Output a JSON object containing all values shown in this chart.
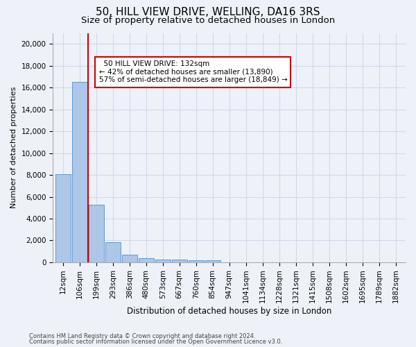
{
  "title1": "50, HILL VIEW DRIVE, WELLING, DA16 3RS",
  "title2": "Size of property relative to detached houses in London",
  "xlabel": "Distribution of detached houses by size in London",
  "ylabel": "Number of detached properties",
  "categories": [
    "12sqm",
    "106sqm",
    "199sqm",
    "293sqm",
    "386sqm",
    "480sqm",
    "573sqm",
    "667sqm",
    "760sqm",
    "854sqm",
    "947sqm",
    "1041sqm",
    "1134sqm",
    "1228sqm",
    "1321sqm",
    "1415sqm",
    "1508sqm",
    "1602sqm",
    "1695sqm",
    "1789sqm",
    "1882sqm"
  ],
  "values": [
    8100,
    16500,
    5300,
    1850,
    700,
    350,
    270,
    230,
    200,
    170,
    0,
    0,
    0,
    0,
    0,
    0,
    0,
    0,
    0,
    0,
    0
  ],
  "bar_color": "#aec6e8",
  "bar_edge_color": "#5b9bd5",
  "grid_color": "#d0d8e8",
  "bg_color": "#eef2f8",
  "vline_x": 1.5,
  "vline_color": "#cc0000",
  "annotation_text": "  50 HILL VIEW DRIVE: 132sqm\n← 42% of detached houses are smaller (13,890)\n57% of semi-detached houses are larger (18,849) →",
  "annotation_box_color": "#ffffff",
  "annotation_box_edge": "#cc0000",
  "ylim": [
    0,
    21000
  ],
  "yticks": [
    0,
    2000,
    4000,
    6000,
    8000,
    10000,
    12000,
    14000,
    16000,
    18000,
    20000
  ],
  "footer1": "Contains HM Land Registry data © Crown copyright and database right 2024.",
  "footer2": "Contains public sector information licensed under the Open Government Licence v3.0.",
  "title1_fontsize": 11,
  "title2_fontsize": 9.5
}
